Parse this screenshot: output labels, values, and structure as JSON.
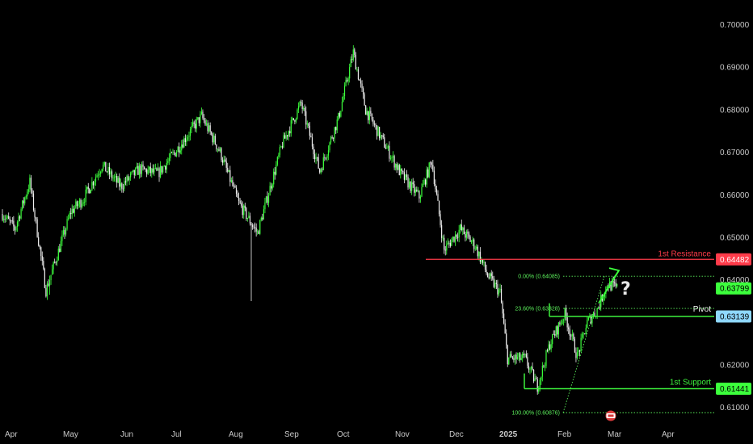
{
  "colors": {
    "background": "#000000",
    "bull": "#3cff3c",
    "bear": "#f0f0f0",
    "resistance": "#ff3b4a",
    "support": "#3cf03c",
    "pivot": "#3cf03c",
    "pivot_badge": "#8fd8ff",
    "fib": "#5bf05b",
    "axis_text": "#c8c8c8"
  },
  "chart_data": {
    "type": "candlestick",
    "ylim": [
      0.6052,
      0.7039
    ],
    "y_ticks": [
      "0.70000",
      "0.69000",
      "0.68000",
      "0.67000",
      "0.66000",
      "0.65000",
      "0.64000",
      "0.62000",
      "0.61000"
    ],
    "x_ticks": [
      "Apr",
      "May",
      "Jun",
      "Jul",
      "Aug",
      "Sep",
      "Oct",
      "Nov",
      "Dec",
      "2025",
      "Feb",
      "Mar",
      "Apr"
    ],
    "anchors": [
      {
        "d": 0,
        "p": 0.6555
      },
      {
        "d": 10,
        "p": 0.652
      },
      {
        "d": 22,
        "p": 0.663
      },
      {
        "d": 35,
        "p": 0.6375
      },
      {
        "d": 55,
        "p": 0.656
      },
      {
        "d": 65,
        "p": 0.659
      },
      {
        "d": 80,
        "p": 0.667
      },
      {
        "d": 95,
        "p": 0.662
      },
      {
        "d": 110,
        "p": 0.666
      },
      {
        "d": 125,
        "p": 0.665
      },
      {
        "d": 140,
        "p": 0.6705
      },
      {
        "d": 160,
        "p": 0.6785
      },
      {
        "d": 175,
        "p": 0.67
      },
      {
        "d": 190,
        "p": 0.658
      },
      {
        "d": 205,
        "p": 0.651
      },
      {
        "d": 225,
        "p": 0.672
      },
      {
        "d": 240,
        "p": 0.6815
      },
      {
        "d": 255,
        "p": 0.6655
      },
      {
        "d": 270,
        "p": 0.678
      },
      {
        "d": 282,
        "p": 0.6935
      },
      {
        "d": 292,
        "p": 0.68
      },
      {
        "d": 305,
        "p": 0.673
      },
      {
        "d": 320,
        "p": 0.665
      },
      {
        "d": 335,
        "p": 0.6595
      },
      {
        "d": 345,
        "p": 0.668
      },
      {
        "d": 355,
        "p": 0.647
      },
      {
        "d": 368,
        "p": 0.652
      },
      {
        "d": 380,
        "p": 0.648
      },
      {
        "d": 390,
        "p": 0.641
      },
      {
        "d": 400,
        "p": 0.637
      },
      {
        "d": 406,
        "p": 0.6215
      },
      {
        "d": 420,
        "p": 0.6215
      },
      {
        "d": 430,
        "p": 0.615
      },
      {
        "d": 440,
        "p": 0.625
      },
      {
        "d": 452,
        "p": 0.632
      },
      {
        "d": 462,
        "p": 0.622
      },
      {
        "d": 470,
        "p": 0.63
      },
      {
        "d": 478,
        "p": 0.633
      },
      {
        "d": 486,
        "p": 0.639
      },
      {
        "d": 494,
        "p": 0.638
      }
    ],
    "spikes": [
      {
        "d": 38,
        "low": 0.6365
      },
      {
        "d": 200,
        "low": 0.635
      }
    ],
    "levels": {
      "resistance": {
        "label": "1st Resistance",
        "value": 0.64482,
        "value_text": "0.64482"
      },
      "pivot": {
        "label": "Pivot",
        "value": 0.63139,
        "value_text": "0.63139"
      },
      "support": {
        "label": "1st Support",
        "value": 0.61441,
        "value_text": "0.61441"
      },
      "current": {
        "value": 0.63799,
        "value_text": "0.63799"
      }
    },
    "fibonacci": [
      {
        "label": "0.00% (0.64085)",
        "value": 0.64085
      },
      {
        "label": "23.60% (0.63328)",
        "value": 0.63328
      },
      {
        "label": "100.00% (0.60876)",
        "value": 0.60876
      }
    ],
    "annotation": "?"
  }
}
